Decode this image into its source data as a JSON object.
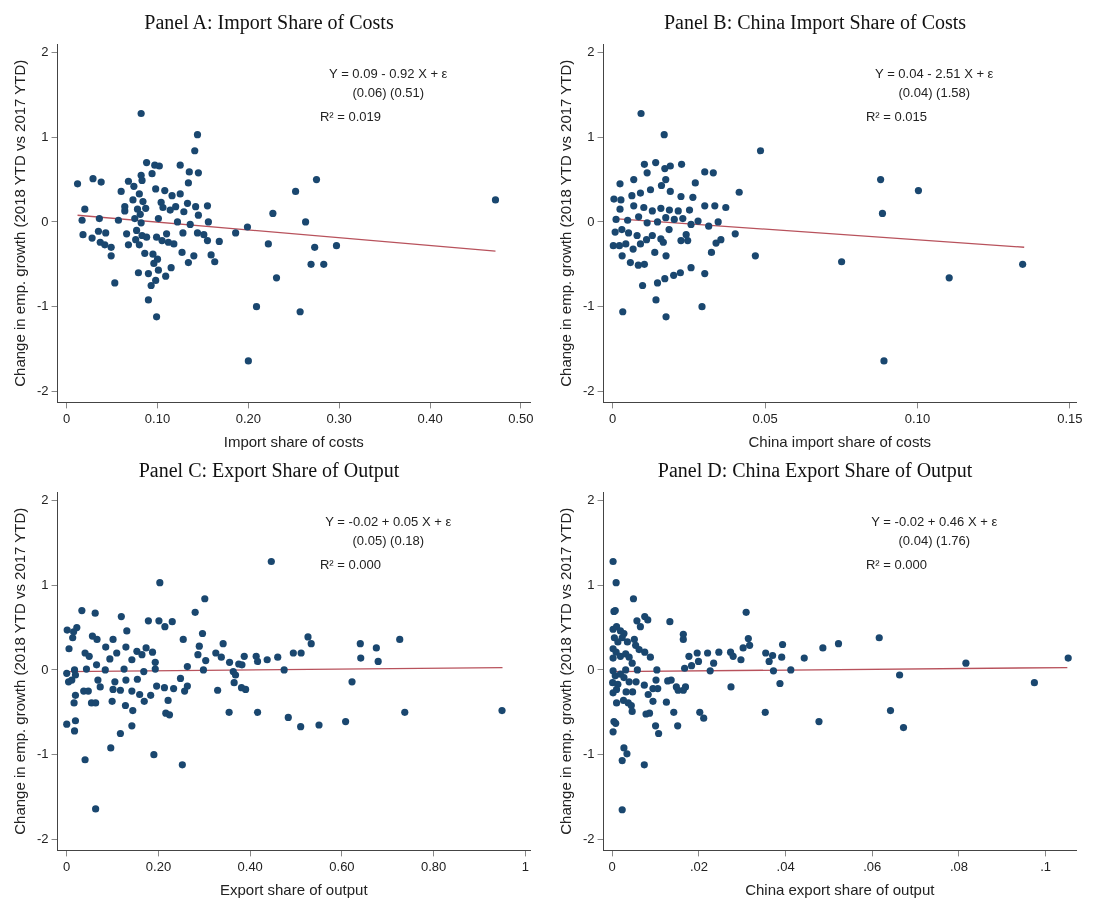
{
  "chart_data": [
    {
      "type": "scatter",
      "title": "Panel A: Import Share of Costs",
      "xlabel": "Import share of costs",
      "ylabel": "Change in emp. growth (2018 YTD vs 2017 YTD)",
      "xlim": [
        -0.01,
        0.51
      ],
      "ylim": [
        -2.13,
        2.1
      ],
      "xticks": [
        0,
        {
          "value": 0.1,
          "label": "0.10"
        },
        {
          "value": 0.2,
          "label": "0.20"
        },
        {
          "value": 0.3,
          "label": "0.30"
        },
        {
          "value": 0.4,
          "label": "0.40"
        },
        {
          "value": 0.5,
          "label": "0.50"
        }
      ],
      "yticks": [
        -2,
        -1,
        0,
        1,
        2
      ],
      "annotations": [
        "Y = 0.09 - 0.92 X + ε",
        "(0.06) (0.51)",
        "R² = 0.019"
      ],
      "series": [
        {
          "type": "scatter",
          "color": "#1a476f",
          "marker": "circle",
          "x": [
            0.012,
            0.029,
            0.038,
            0.02,
            0.017,
            0.018,
            0.028,
            0.036,
            0.035,
            0.037,
            0.042,
            0.043,
            0.049,
            0.049,
            0.053,
            0.057,
            0.06,
            0.064,
            0.064,
            0.068,
            0.066,
            0.068,
            0.074,
            0.073,
            0.075,
            0.077,
            0.076,
            0.079,
            0.082,
            0.082,
            0.083,
            0.08,
            0.078,
            0.081,
            0.084,
            0.082,
            0.083,
            0.08,
            0.086,
            0.088,
            0.087,
            0.088,
            0.09,
            0.09,
            0.094,
            0.093,
            0.095,
            0.096,
            0.098,
            0.099,
            0.098,
            0.097,
            0.102,
            0.099,
            0.101,
            0.101,
            0.1,
            0.104,
            0.105,
            0.106,
            0.108,
            0.109,
            0.11,
            0.112,
            0.114,
            0.115,
            0.116,
            0.118,
            0.12,
            0.122,
            0.125,
            0.125,
            0.128,
            0.127,
            0.129,
            0.133,
            0.134,
            0.135,
            0.134,
            0.136,
            0.14,
            0.141,
            0.144,
            0.145,
            0.142,
            0.145,
            0.144,
            0.151,
            0.155,
            0.156,
            0.155,
            0.159,
            0.163,
            0.168,
            0.186,
            0.199,
            0.2,
            0.209,
            0.222,
            0.227,
            0.231,
            0.252,
            0.257,
            0.263,
            0.269,
            0.273,
            0.275,
            0.283,
            0.297,
            0.472
          ],
          "values": [
            0.45,
            0.51,
            0.47,
            0.15,
            0.02,
            -0.15,
            -0.19,
            0.04,
            -0.11,
            -0.24,
            -0.27,
            -0.13,
            -0.3,
            -0.4,
            -0.72,
            0.02,
            0.36,
            0.13,
            0.18,
            0.48,
            -0.14,
            -0.27,
            0.42,
            0.26,
            0.04,
            -0.1,
            -0.21,
            -0.6,
            1.28,
            0.55,
            0.49,
            0.33,
            0.15,
            0.09,
            0.24,
            -0.01,
            -0.16,
            -0.27,
            -0.37,
            0.7,
            0.16,
            -0.18,
            -0.61,
            -0.92,
            0.57,
            -0.75,
            -0.38,
            -0.49,
            -0.69,
            -1.12,
            0.39,
            0.67,
            0.66,
            -0.18,
            0.04,
            -0.57,
            -0.44,
            0.23,
            -0.22,
            0.17,
            0.37,
            -0.64,
            -0.14,
            -0.24,
            0.14,
            -0.54,
            0.31,
            -0.26,
            0.18,
            0.0,
            0.67,
            0.33,
            -0.13,
            -0.36,
            0.12,
            0.22,
            0.46,
            0.59,
            -0.48,
            -0.03,
            -0.4,
            0.84,
            1.03,
            0.58,
            0.18,
            0.08,
            -0.13,
            -0.15,
            0.19,
            0.0,
            -0.22,
            -0.39,
            -0.47,
            -0.23,
            -0.13,
            -0.06,
            -1.64,
            -1.0,
            -0.26,
            0.1,
            -0.66,
            0.36,
            -1.06,
            0.0,
            -0.5,
            -0.3,
            0.5,
            -0.5,
            -0.28,
            0.26
          ]
        },
        {
          "type": "line",
          "color": "#b8525c",
          "marker": "none",
          "x": [
            0.012,
            0.472
          ],
          "values": [
            0.079,
            -0.344
          ]
        }
      ]
    },
    {
      "type": "scatter",
      "title": "Panel B: China Import Share of Costs",
      "xlabel": "China import share of costs",
      "ylabel": "Change in emp. growth (2018 YTD vs 2017 YTD)",
      "xlim": [
        -0.003,
        0.152
      ],
      "ylim": [
        -2.13,
        2.1
      ],
      "xticks": [
        0,
        0.05,
        {
          "value": 0.1,
          "label": "0.10"
        },
        {
          "value": 0.15,
          "label": "0.15"
        }
      ],
      "yticks": [
        -2,
        -1,
        0,
        1,
        2
      ],
      "annotations": [
        "Y = 0.04 - 2.51 X + ε",
        "(0.04) (1.58)",
        "R² = 0.015"
      ],
      "series": [
        {
          "type": "scatter",
          "color": "#1a476f",
          "marker": "circle",
          "x": [
            0.0093,
            0.0169,
            0.0485,
            0.0879,
            0.1003,
            0.0885,
            0.0415,
            0.0468,
            0.0751,
            0.1345,
            0.1104,
            0.089,
            0.0033,
            0.0175,
            0.0293,
            0.0142,
            0.0098,
            0.0147,
            0.0171,
            0.02,
            0.0302,
            0.0222,
            0.0257,
            0.0104,
            0.0084,
            0.0058,
            0.0031,
            0.0324,
            0.0175,
            0.0138,
            0.0002,
            0.0022,
            0.0043,
            0.0067,
            0.0091,
            0.0111,
            0.0158,
            0.0166,
            0.0224,
            0.0246,
            0.0339,
            0.0355,
            0.0402,
            0.0008,
            0.003,
            0.0052,
            0.008,
            0.013,
            0.0185,
            0.0241,
            0.0257,
            0.0315,
            0.0346,
            0.028,
            0.0011,
            0.0049,
            0.0085,
            0.0113,
            0.0147,
            0.0174,
            0.0202,
            0.023,
            0.0024,
            0.0069,
            0.0102,
            0.013,
            0.0158,
            0.0186,
            0.0215,
            0.0252,
            0.0302,
            0.0335,
            0.0371,
            0.0004,
            0.0027,
            0.0063,
            0.0091,
            0.0124,
            0.016,
            0.0189,
            0.0224,
            0.0263,
            0.0271,
            0.0302,
            0.033,
            0.0024,
            0.0069,
            0.0113,
            0.0104,
            0.0141,
            0.0171,
            0.0189,
            0.0226,
            0.0174
          ],
          "values": [
            1.28,
            1.03,
            0.84,
            0.5,
            0.37,
            0.1,
            0.35,
            -0.4,
            -0.47,
            -0.5,
            -0.66,
            -1.64,
            -1.06,
            -1.12,
            -1.0,
            -0.92,
            -0.75,
            -0.72,
            -0.67,
            -0.63,
            -0.61,
            -0.6,
            -0.54,
            -0.5,
            -0.51,
            -0.48,
            -0.4,
            -0.36,
            -0.4,
            -0.36,
            -0.28,
            -0.28,
            -0.26,
            -0.32,
            -0.26,
            -0.21,
            -0.2,
            -0.24,
            -0.22,
            -0.22,
            -0.25,
            -0.21,
            -0.14,
            -0.12,
            -0.09,
            -0.13,
            -0.16,
            -0.16,
            -0.09,
            -0.15,
            -0.03,
            -0.05,
            0.0,
            0.01,
            0.03,
            0.02,
            0.06,
            -0.01,
            0.0,
            0.05,
            0.03,
            0.04,
            0.15,
            0.19,
            0.17,
            0.13,
            0.16,
            0.14,
            0.13,
            0.14,
            0.19,
            0.19,
            0.17,
            0.27,
            0.26,
            0.31,
            0.34,
            0.38,
            0.43,
            0.36,
            0.3,
            0.29,
            0.46,
            0.59,
            0.58,
            0.45,
            0.5,
            0.58,
            0.68,
            0.7,
            0.63,
            0.66,
            0.68,
            0.5
          ]
        },
        {
          "type": "line",
          "color": "#b8525c",
          "marker": "none",
          "x": [
            0.0005,
            0.135
          ],
          "values": [
            0.039,
            -0.299
          ]
        }
      ]
    },
    {
      "type": "scatter",
      "title": "Panel C: Export Share of Output",
      "xlabel": "Export share of output",
      "ylabel": "Change in emp. growth (2018 YTD vs 2017 YTD)",
      "xlim": [
        -0.02,
        1.01
      ],
      "ylim": [
        -2.13,
        2.1
      ],
      "xticks": [
        0,
        {
          "value": 0.2,
          "label": "0.20"
        },
        {
          "value": 0.4,
          "label": "0.40"
        },
        {
          "value": 0.6,
          "label": "0.60"
        },
        {
          "value": 0.8,
          "label": "0.80"
        },
        1
      ],
      "yticks": [
        -2,
        -1,
        0,
        1,
        2
      ],
      "annotations": [
        "Y = -0.02 + 0.05 X + ε",
        "(0.05) (0.18)",
        "R² = 0.000"
      ],
      "series": [
        {
          "type": "scatter",
          "color": "#1a476f",
          "marker": "circle",
          "x": [
            0.446,
            0.203,
            0.301,
            0.28,
            0.033,
            0.062,
            0.119,
            0.178,
            0.201,
            0.214,
            0.23,
            0.001,
            0.015,
            0.022,
            0.013,
            0.005,
            0.056,
            0.066,
            0.101,
            0.131,
            0.296,
            0.254,
            0.289,
            0.341,
            0.085,
            0.129,
            0.153,
            0.173,
            0.187,
            0.04,
            0.049,
            0.109,
            0.094,
            0.142,
            0.164,
            0.193,
            0.286,
            0.303,
            0.325,
            0.337,
            0.355,
            0.375,
            0.382,
            0.387,
            0.413,
            0.416,
            0.437,
            0.46,
            0.494,
            0.511,
            0.526,
            0.533,
            0.64,
            0.641,
            0.675,
            0.679,
            0.726,
            0.0,
            0.004,
            0.011,
            0.017,
            0.019,
            0.043,
            0.065,
            0.084,
            0.125,
            0.168,
            0.193,
            0.263,
            0.298,
            0.474,
            0.363,
            0.368,
            0.068,
            0.073,
            0.105,
            0.129,
            0.154,
            0.248,
            0.365,
            0.196,
            0.213,
            0.233,
            0.263,
            0.257,
            0.381,
            0.39,
            0.329,
            0.019,
            0.037,
            0.047,
            0.101,
            0.117,
            0.142,
            0.159,
            0.016,
            0.054,
            0.063,
            0.099,
            0.169,
            0.183,
            0.221,
            0.128,
            0.144,
            0.216,
            0.224,
            0.354,
            0.416,
            0.737,
            0.949,
            0.483,
            0.51,
            0.55,
            0.608,
            0.622,
            0.0,
            0.019,
            0.017,
            0.142,
            0.117,
            0.096,
            0.04,
            0.19,
            0.252,
            0.063
          ],
          "values": [
            1.28,
            1.03,
            0.84,
            0.68,
            0.7,
            0.67,
            0.63,
            0.58,
            0.58,
            0.51,
            0.57,
            0.47,
            0.45,
            0.5,
            0.38,
            0.25,
            0.4,
            0.36,
            0.36,
            0.46,
            0.43,
            0.36,
            0.28,
            0.31,
            0.27,
            0.27,
            0.22,
            0.26,
            0.21,
            0.2,
            0.16,
            0.2,
            0.13,
            0.12,
            0.18,
            0.09,
            0.18,
            0.11,
            0.2,
            0.15,
            0.09,
            0.07,
            0.06,
            0.16,
            0.16,
            0.1,
            0.12,
            0.15,
            0.2,
            0.2,
            0.39,
            0.31,
            0.31,
            0.14,
            0.26,
            0.1,
            0.36,
            -0.04,
            -0.14,
            -0.12,
            0.0,
            -0.06,
            0.01,
            0.06,
            0.0,
            0.01,
            -0.02,
            0.01,
            0.04,
            0.0,
            0.0,
            -0.02,
            -0.06,
            -0.12,
            -0.2,
            -0.14,
            -0.12,
            -0.11,
            -0.1,
            -0.15,
            -0.19,
            -0.21,
            -0.22,
            -0.19,
            -0.25,
            -0.21,
            -0.23,
            -0.24,
            -0.3,
            -0.25,
            -0.25,
            -0.23,
            -0.24,
            -0.25,
            -0.29,
            -0.39,
            -0.39,
            -0.39,
            -0.37,
            -0.37,
            -0.3,
            -0.36,
            -0.42,
            -0.48,
            -0.51,
            -0.53,
            -0.5,
            -0.5,
            -0.5,
            -0.48,
            -0.56,
            -0.67,
            -0.65,
            -0.61,
            -0.14,
            -0.64,
            -0.6,
            -0.72,
            -0.66,
            -0.75,
            -0.92,
            -1.06,
            -1.0,
            -1.12,
            -1.64
          ]
        },
        {
          "type": "line",
          "color": "#b8525c",
          "marker": "none",
          "x": [
            0,
            0.95
          ],
          "values": [
            -0.02,
            0.0275
          ]
        }
      ]
    },
    {
      "type": "scatter",
      "title": "Panel D: China Export Share of Output",
      "xlabel": "China export share of output",
      "ylabel": "Change in emp. growth (2018 YTD vs 2017 YTD)",
      "xlim": [
        -0.002,
        0.107
      ],
      "ylim": [
        -2.13,
        2.1
      ],
      "xticks": [
        0,
        {
          "value": 0.02,
          "label": ".02"
        },
        {
          "value": 0.04,
          "label": ".04"
        },
        {
          "value": 0.06,
          "label": ".06"
        },
        {
          "value": 0.08,
          "label": ".08"
        },
        {
          "value": 0.1,
          "label": ".1"
        }
      ],
      "yticks": [
        -2,
        -1,
        0,
        1,
        2
      ],
      "annotations": [
        "Y = -0.02 + 0.46 X + ε",
        "(0.04) (1.76)",
        "R² = 0.000"
      ],
      "series": [
        {
          "type": "scatter",
          "color": "#1a476f",
          "marker": "circle",
          "x": [
            0.0002,
            0.0009,
            0.0004,
            0.0007,
            0.0049,
            0.0057,
            0.0065,
            0.0075,
            0.0082,
            0.0133,
            0.0309,
            0.0002,
            0.001,
            0.0019,
            0.0027,
            0.0023,
            0.0005,
            0.0013,
            0.0035,
            0.0051,
            0.0054,
            0.0062,
            0.0164,
            0.0164,
            0.0314,
            0.0317,
            0.0393,
            0.0616,
            0.0522,
            0.0486,
            0.0302,
            0.0002,
            0.0009,
            0.0019,
            0.0031,
            0.0039,
            0.0002,
            0.0075,
            0.0088,
            0.0177,
            0.0196,
            0.022,
            0.0246,
            0.0273,
            0.0279,
            0.0297,
            0.0354,
            0.037,
            0.0362,
            0.0391,
            0.0443,
            0.1052,
            0.0816,
            0.0183,
            0.0199,
            0.0234,
            0.0226,
            0.0167,
            0.0372,
            0.0412,
            0.0103,
            0.0046,
            0.0058,
            0.0031,
            0.0002,
            0.0007,
            0.0019,
            0.0663,
            0.0001,
            0.0013,
            0.0027,
            0.0039,
            0.0055,
            0.0128,
            0.0136,
            0.0101,
            0.0074,
            0.0094,
            0.0105,
            0.0148,
            0.0169,
            0.0164,
            0.0387,
            0.0274,
            0.0974,
            0.0002,
            0.001,
            0.0032,
            0.0047,
            0.0083,
            0.0152,
            0.001,
            0.0026,
            0.0037,
            0.0044,
            0.0094,
            0.0125,
            0.0046,
            0.0078,
            0.0086,
            0.0142,
            0.0202,
            0.0211,
            0.0353,
            0.0642,
            0.0004,
            0.0008,
            0.0151,
            0.01,
            0.0107,
            0.0477,
            0.0672,
            0.0002,
            0.0027,
            0.0034,
            0.0023,
            0.0074,
            0.0023
          ],
          "values": [
            1.28,
            1.03,
            0.69,
            0.7,
            0.84,
            0.58,
            0.51,
            0.63,
            0.59,
            0.57,
            0.68,
            0.48,
            0.51,
            0.46,
            0.43,
            0.38,
            0.38,
            0.33,
            0.33,
            0.36,
            0.29,
            0.24,
            0.42,
            0.36,
            0.37,
            0.29,
            0.3,
            0.38,
            0.31,
            0.26,
            0.26,
            0.25,
            0.21,
            0.16,
            0.19,
            0.15,
            0.14,
            0.21,
            0.15,
            0.16,
            0.2,
            0.2,
            0.21,
            0.21,
            0.16,
            0.12,
            0.2,
            0.17,
            0.1,
            0.15,
            0.14,
            0.14,
            0.08,
            0.05,
            0.1,
            0.08,
            -0.01,
            0.02,
            -0.01,
            0.0,
            0.0,
            0.08,
            0.0,
            0.0,
            -0.01,
            -0.07,
            -0.05,
            -0.06,
            -0.15,
            -0.17,
            -0.09,
            -0.14,
            -0.14,
            -0.13,
            -0.12,
            -0.12,
            -0.18,
            -0.22,
            -0.22,
            -0.2,
            -0.2,
            -0.24,
            -0.16,
            -0.2,
            -0.15,
            -0.27,
            -0.23,
            -0.26,
            -0.26,
            -0.29,
            -0.24,
            -0.39,
            -0.36,
            -0.39,
            -0.42,
            -0.37,
            -0.38,
            -0.49,
            -0.52,
            -0.51,
            -0.5,
            -0.5,
            -0.57,
            -0.5,
            -0.48,
            -0.61,
            -0.63,
            -0.66,
            -0.66,
            -0.75,
            -0.61,
            -0.68,
            -0.73,
            -0.92,
            -0.99,
            -1.07,
            -1.12,
            -1.65
          ]
        },
        {
          "type": "line",
          "color": "#b8525c",
          "marker": "none",
          "x": [
            0,
            0.105
          ],
          "values": [
            -0.02,
            0.028
          ]
        }
      ]
    }
  ]
}
